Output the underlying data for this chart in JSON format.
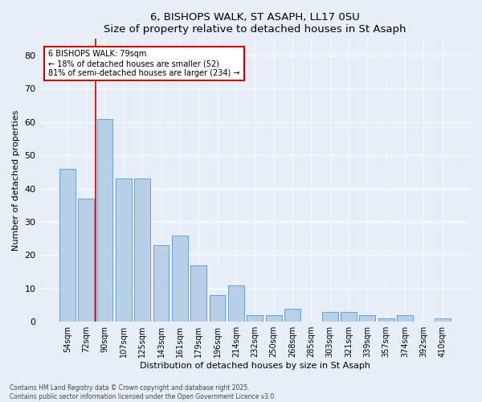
{
  "title": "6, BISHOPS WALK, ST ASAPH, LL17 0SU",
  "subtitle": "Size of property relative to detached houses in St Asaph",
  "xlabel": "Distribution of detached houses by size in St Asaph",
  "ylabel": "Number of detached properties",
  "bar_labels": [
    "54sqm",
    "72sqm",
    "90sqm",
    "107sqm",
    "125sqm",
    "143sqm",
    "161sqm",
    "179sqm",
    "196sqm",
    "214sqm",
    "232sqm",
    "250sqm",
    "268sqm",
    "285sqm",
    "303sqm",
    "321sqm",
    "339sqm",
    "357sqm",
    "374sqm",
    "392sqm",
    "410sqm"
  ],
  "bar_values": [
    46,
    37,
    61,
    43,
    43,
    23,
    26,
    17,
    8,
    11,
    2,
    2,
    4,
    0,
    3,
    3,
    2,
    1,
    2,
    0,
    1
  ],
  "bar_color": "#b8cfe8",
  "bar_edge_color": "#6a9fd8",
  "background_color": "#e8eef8",
  "grid_color": "#ffffff",
  "annotation_text": "6 BISHOPS WALK: 79sqm\n← 18% of detached houses are smaller (52)\n81% of semi-detached houses are larger (234) →",
  "annotation_box_color": "#ffffff",
  "annotation_box_edge": "#cc0000",
  "vline_color": "#cc0000",
  "vline_x": 1.5,
  "ylim": [
    0,
    85
  ],
  "yticks": [
    0,
    10,
    20,
    30,
    40,
    50,
    60,
    70,
    80
  ],
  "footer1": "Contains HM Land Registry data © Crown copyright and database right 2025.",
  "footer2": "Contains public sector information licensed under the Open Government Licence v3.0."
}
